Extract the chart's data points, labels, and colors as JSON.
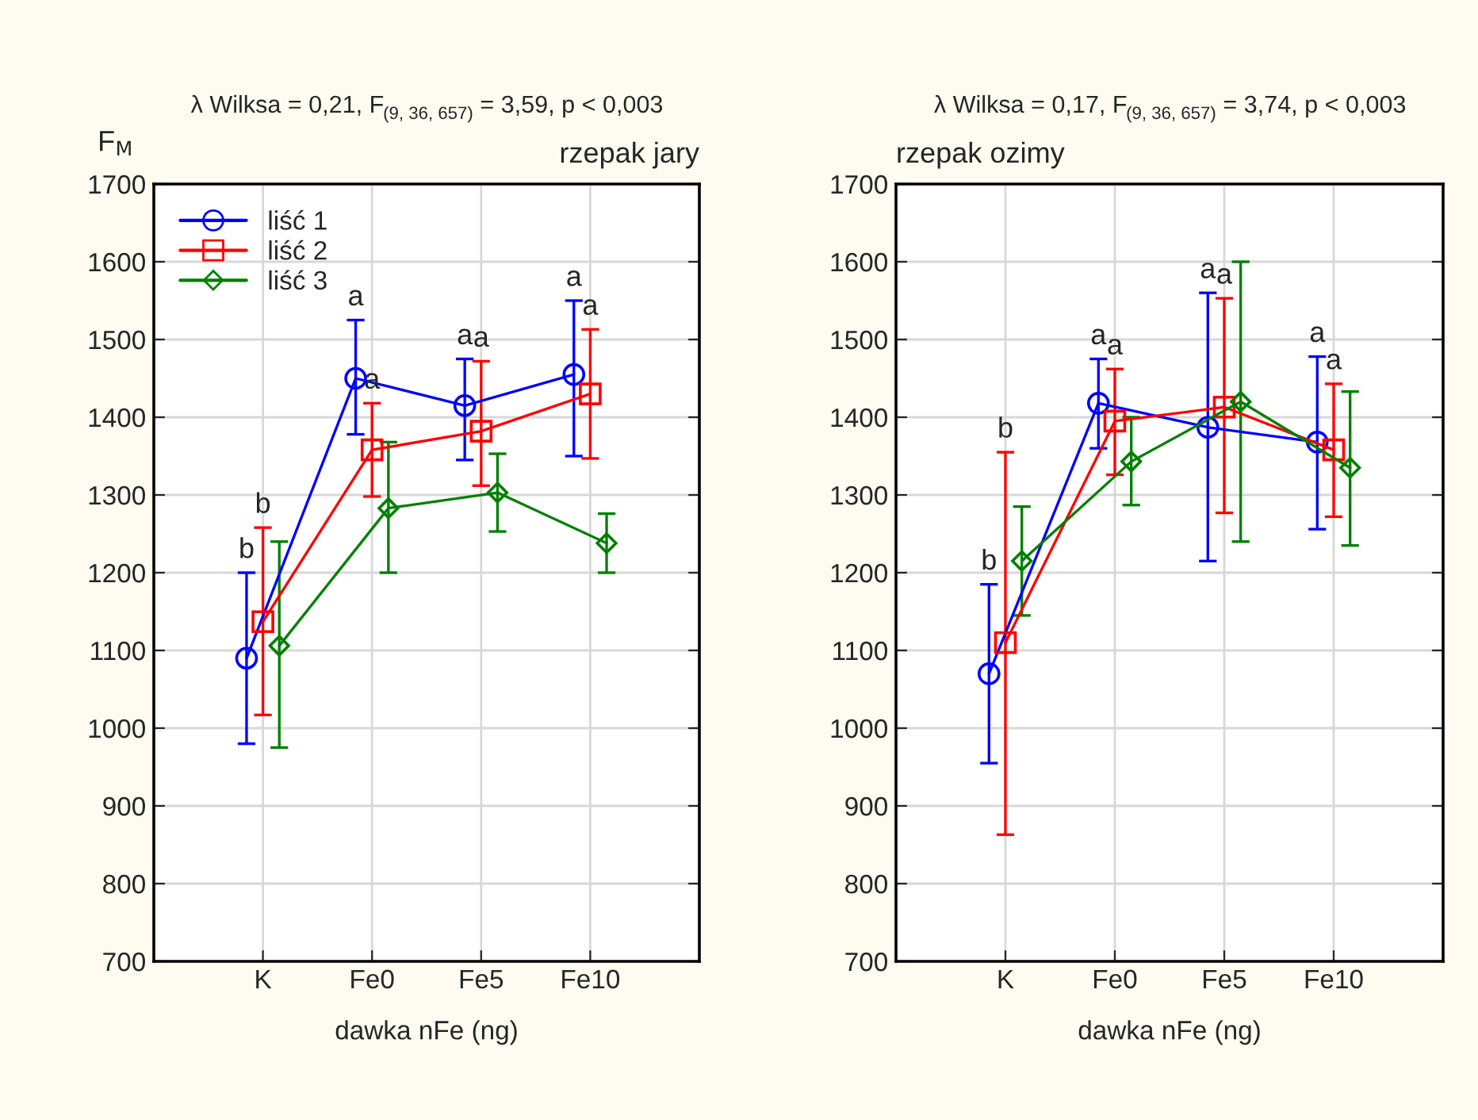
{
  "chart_data": [
    {
      "type": "line",
      "title": "λ Wilksa = 0,21, F$_{(9, 36, 657)}$ = 3,59, p < 0,003",
      "subtitle": "rzepak jary",
      "xlabel": "dawka nFe (ng)",
      "ylabel": "F$_{M}$",
      "categories": [
        "K",
        "Fe0",
        "Fe5",
        "Fe10"
      ],
      "ylim": [
        700,
        1700
      ],
      "yticks": [
        700,
        800,
        900,
        1000,
        1100,
        1200,
        1300,
        1400,
        1500,
        1600,
        1700
      ],
      "grid": true,
      "legend": "top left",
      "series": [
        {
          "name": "liść 1",
          "color": "#0000ff",
          "marker": "circle",
          "values": [
            1090,
            1450,
            1415,
            1455
          ],
          "errors": [
            [
              980,
              1200
            ],
            [
              1378,
              1525
            ],
            [
              1345,
              1475
            ],
            [
              1350,
              1550
            ]
          ]
        },
        {
          "name": "liść 2",
          "color": "#ff0000",
          "marker": "square",
          "values": [
            1137,
            1358,
            1382,
            1430
          ],
          "errors": [
            [
              1017,
              1258
            ],
            [
              1298,
              1418
            ],
            [
              1312,
              1472
            ],
            [
              1347,
              1513
            ]
          ]
        },
        {
          "name": "liść 3",
          "color": "#008000",
          "marker": "diamond",
          "values": [
            1106,
            1283,
            1303,
            1238
          ],
          "errors": [
            [
              975,
              1240
            ],
            [
              1200,
              1368
            ],
            [
              1253,
              1353
            ],
            [
              1200,
              1276
            ]
          ]
        }
      ],
      "annotations": [
        {
          "text": "b",
          "x": "K",
          "y": 1200
        },
        {
          "text": "b",
          "x": "K",
          "y": 1258
        },
        {
          "text": "a",
          "x": "Fe0",
          "y": 1525
        },
        {
          "text": "a",
          "x": "Fe0",
          "y": 1418
        },
        {
          "text": "a",
          "x": "Fe5",
          "y": 1475
        },
        {
          "text": "a",
          "x": "Fe5",
          "y": 1472
        },
        {
          "text": "a",
          "x": "Fe10",
          "y": 1550
        },
        {
          "text": "a",
          "x": "Fe10",
          "y": 1513
        }
      ]
    },
    {
      "type": "line",
      "title": "λ Wilksa = 0,17, F$_{(9, 36, 657)}$ = 3,74, p < 0,003",
      "subtitle": "rzepak ozimy",
      "xlabel": "dawka nFe (ng)",
      "categories": [
        "K",
        "Fe0",
        "Fe5",
        "Fe10"
      ],
      "ylim": [
        700,
        1700
      ],
      "yticks": [
        700,
        800,
        900,
        1000,
        1100,
        1200,
        1300,
        1400,
        1500,
        1600,
        1700
      ],
      "grid": true,
      "series": [
        {
          "color": "#0000ff",
          "marker": "circle",
          "values": [
            1070,
            1418,
            1387,
            1368
          ],
          "errors": [
            [
              955,
              1185
            ],
            [
              1360,
              1475
            ],
            [
              1215,
              1560
            ],
            [
              1256,
              1478
            ]
          ]
        },
        {
          "color": "#ff0000",
          "marker": "square",
          "values": [
            1110,
            1395,
            1413,
            1358
          ],
          "errors": [
            [
              863,
              1355
            ],
            [
              1326,
              1462
            ],
            [
              1277,
              1553
            ],
            [
              1272,
              1443
            ]
          ]
        },
        {
          "color": "#008000",
          "marker": "diamond",
          "values": [
            1215,
            1343,
            1420,
            1335
          ],
          "errors": [
            [
              1145,
              1285
            ],
            [
              1287,
              1400
            ],
            [
              1240,
              1600
            ],
            [
              1235,
              1433
            ]
          ]
        }
      ],
      "annotations": [
        {
          "text": "b",
          "x": "K",
          "y": 1185
        },
        {
          "text": "b",
          "x": "K",
          "y": 1355
        },
        {
          "text": "a",
          "x": "Fe0",
          "y": 1475
        },
        {
          "text": "a",
          "x": "Fe0",
          "y": 1462
        },
        {
          "text": "a",
          "x": "Fe5",
          "y": 1560
        },
        {
          "text": "a",
          "x": "Fe5",
          "y": 1553
        },
        {
          "text": "a",
          "x": "Fe10",
          "y": 1478
        },
        {
          "text": "a",
          "x": "Fe10",
          "y": 1443
        }
      ]
    }
  ]
}
